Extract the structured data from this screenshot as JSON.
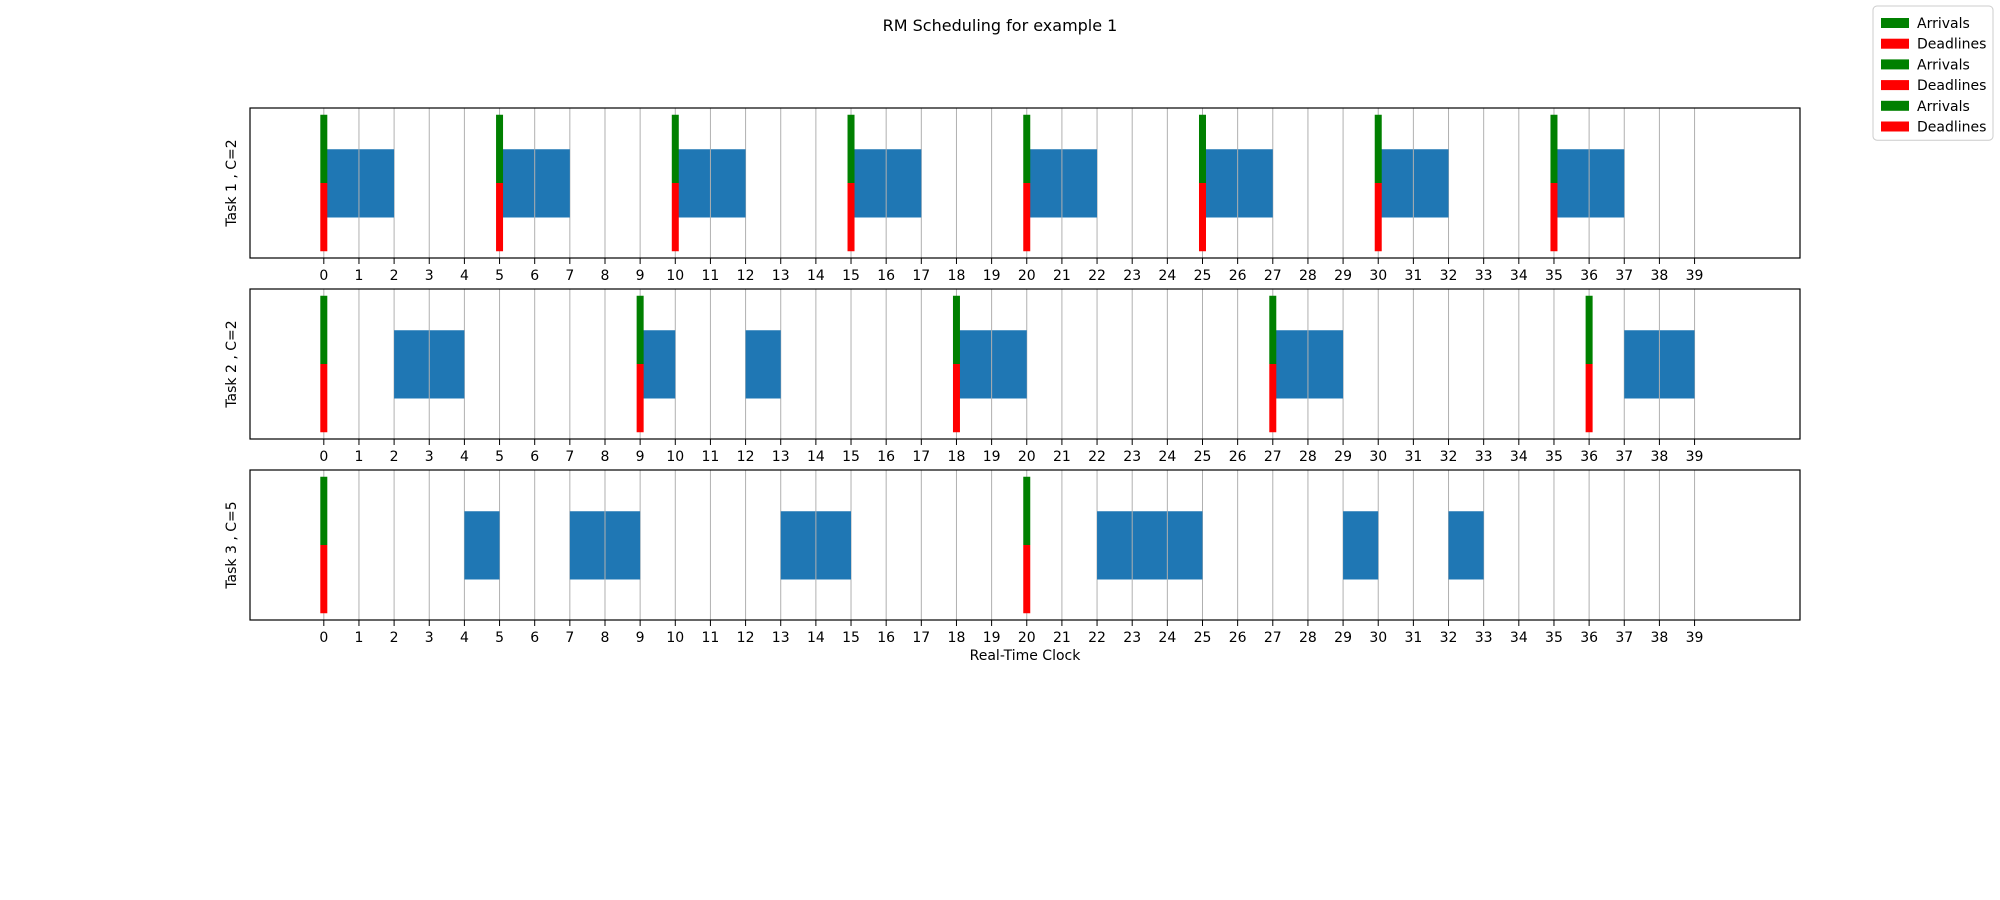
{
  "chart_data": {
    "type": "gantt",
    "title": "RM Scheduling for example 1",
    "xlabel": "Real-Time Clock",
    "xlim": [
      -2.1,
      42
    ],
    "xticks": [
      0,
      1,
      2,
      3,
      4,
      5,
      6,
      7,
      8,
      9,
      10,
      11,
      12,
      13,
      14,
      15,
      16,
      17,
      18,
      19,
      20,
      21,
      22,
      23,
      24,
      25,
      26,
      27,
      28,
      29,
      30,
      31,
      32,
      33,
      34,
      35,
      36,
      37,
      38,
      39
    ],
    "grid": true,
    "legend": {
      "position": "top-right",
      "entries": [
        {
          "label": "Arrivals",
          "color": "#008000"
        },
        {
          "label": "Deadlines",
          "color": "#ff0000"
        },
        {
          "label": "Arrivals",
          "color": "#008000"
        },
        {
          "label": "Deadlines",
          "color": "#ff0000"
        },
        {
          "label": "Arrivals",
          "color": "#008000"
        },
        {
          "label": "Deadlines",
          "color": "#ff0000"
        }
      ]
    },
    "colors": {
      "execution": "#1f77b4",
      "arrival": "#008000",
      "deadline": "#ff0000",
      "grid": "#b0b0b0"
    },
    "tasks": [
      {
        "ylabel": "Task 1 , C=2",
        "arrivals": [
          0,
          5,
          10,
          15,
          20,
          25,
          30,
          35
        ],
        "deadlines": [
          0,
          5,
          10,
          15,
          20,
          25,
          30,
          35
        ],
        "executions": [
          [
            0,
            2
          ],
          [
            5,
            7
          ],
          [
            10,
            12
          ],
          [
            15,
            17
          ],
          [
            20,
            22
          ],
          [
            25,
            27
          ],
          [
            30,
            32
          ],
          [
            35,
            37
          ]
        ]
      },
      {
        "ylabel": "Task 2 , C=2",
        "arrivals": [
          0,
          9,
          18,
          27,
          36
        ],
        "deadlines": [
          0,
          9,
          18,
          27,
          36
        ],
        "executions": [
          [
            2,
            4
          ],
          [
            9,
            10
          ],
          [
            12,
            13
          ],
          [
            18,
            20
          ],
          [
            27,
            29
          ],
          [
            37,
            39
          ]
        ]
      },
      {
        "ylabel": "Task 3 , C=5",
        "arrivals": [
          0,
          20
        ],
        "deadlines": [
          0,
          20
        ],
        "executions": [
          [
            4,
            5
          ],
          [
            7,
            9
          ],
          [
            13,
            15
          ],
          [
            22,
            25
          ],
          [
            29,
            30
          ],
          [
            32,
            33
          ]
        ]
      }
    ]
  }
}
